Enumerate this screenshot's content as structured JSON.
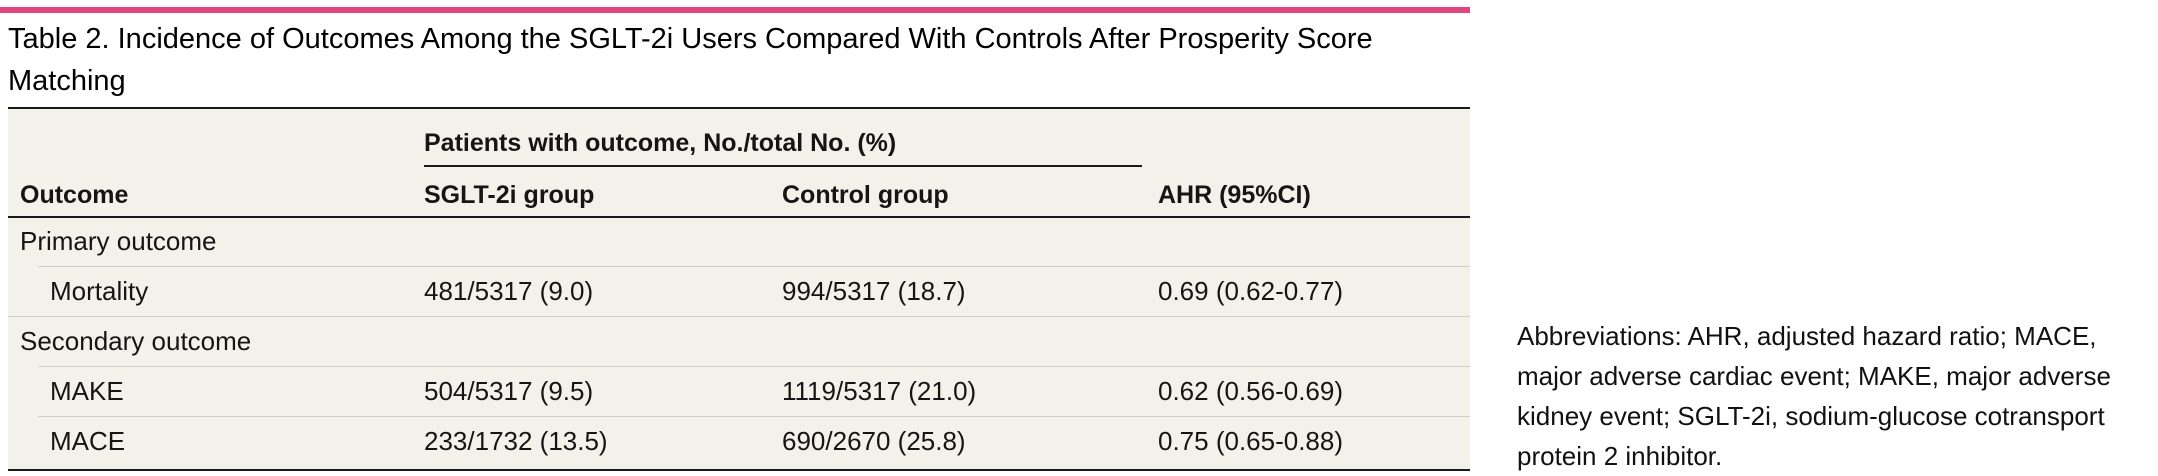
{
  "title": "Table 2. Incidence of Outcomes Among the SGLT-2i Users Compared With Controls After Prosperity Score Matching",
  "header": {
    "span_label": "Patients with outcome, No./total No. (%)",
    "col_outcome": "Outcome",
    "col_sglt": "SGLT-2i group",
    "col_control": "Control group",
    "col_ahr": "AHR (95%CI)"
  },
  "rows": [
    {
      "outcome": "Primary outcome",
      "sglt": "",
      "control": "",
      "ahr": ""
    },
    {
      "outcome": "Mortality",
      "sglt": "481/5317 (9.0)",
      "control": "994/5317 (18.7)",
      "ahr": "0.69 (0.62-0.77)"
    },
    {
      "outcome": "Secondary outcome",
      "sglt": "",
      "control": "",
      "ahr": ""
    },
    {
      "outcome": "MAKE",
      "sglt": "504/5317 (9.5)",
      "control": "1119/5317 (21.0)",
      "ahr": "0.62 (0.56-0.69)"
    },
    {
      "outcome": "MACE",
      "sglt": "233/1732 (13.5)",
      "control": "690/2670 (25.8)",
      "ahr": "0.75 (0.65-0.88)"
    }
  ],
  "footnote": "Abbreviations: AHR, adjusted hazard ratio; MACE, major adverse cardiac event; MAKE, major adverse kidney event; SGLT-2i, sodium-glucose cotransport protein 2 inhibitor.",
  "colors": {
    "accent_rule": "#e0457b",
    "table_background": "#f3f2ea"
  }
}
